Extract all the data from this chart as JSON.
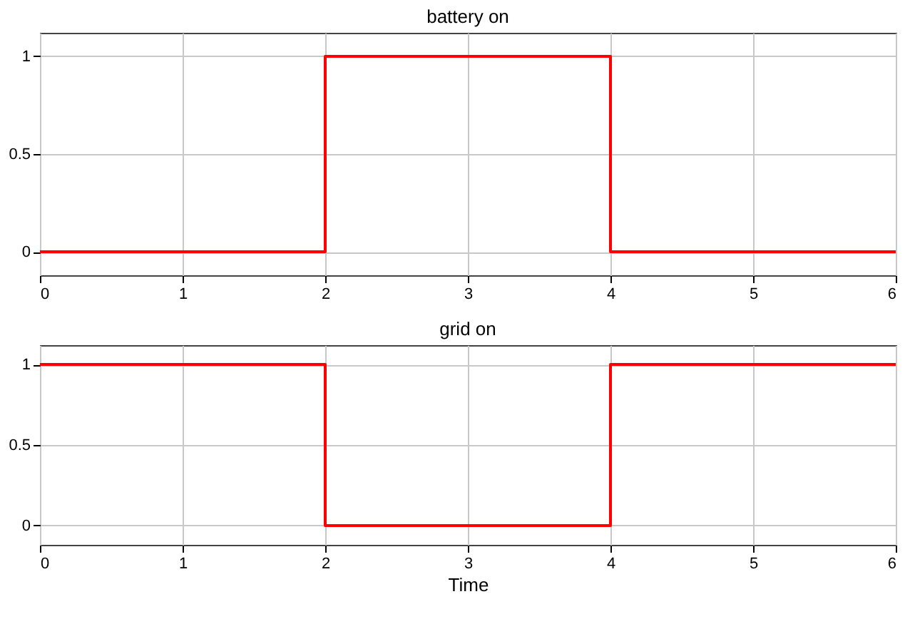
{
  "chart_data": [
    {
      "type": "step",
      "title": "battery on",
      "x": [
        0,
        2,
        4,
        6
      ],
      "series": [
        {
          "color": "#ff0000",
          "values": [
            0,
            1,
            0,
            0
          ]
        }
      ],
      "xlim": [
        0,
        6
      ],
      "xticks": [
        0,
        1,
        2,
        3,
        4,
        5,
        6
      ],
      "ylim": [
        -0.12,
        1.12
      ],
      "yticks": [
        0,
        0.5,
        1
      ],
      "grid": true,
      "line_style": "solid"
    },
    {
      "type": "step",
      "title": "grid on",
      "xlabel": "Time",
      "x": [
        0,
        2,
        4,
        6
      ],
      "series": [
        {
          "color": "#ff0000",
          "values": [
            1,
            0,
            1,
            1
          ]
        }
      ],
      "xlim": [
        0,
        6
      ],
      "xticks": [
        0,
        1,
        2,
        3,
        4,
        5,
        6
      ],
      "ylim": [
        -0.12,
        1.12
      ],
      "yticks": [
        0,
        0.5,
        1
      ],
      "grid": true,
      "line_style": "solid"
    }
  ]
}
